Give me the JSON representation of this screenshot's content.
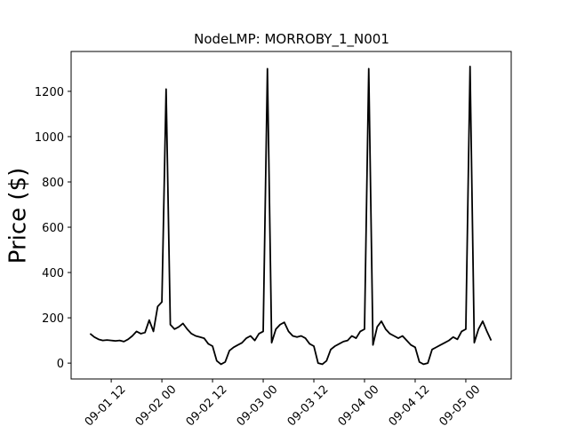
{
  "chart_data": {
    "type": "line",
    "title": "NodeLMP: MORROBY_1_N001",
    "y_label": "Price ($)",
    "x": [
      "09-01 07:00",
      "09-01 08:00",
      "09-01 09:00",
      "09-01 10:00",
      "09-01 11:00",
      "09-01 12:00",
      "09-01 13:00",
      "09-01 14:00",
      "09-01 15:00",
      "09-01 16:00",
      "09-01 17:00",
      "09-01 18:00",
      "09-01 19:00",
      "09-01 20:00",
      "09-01 21:00",
      "09-01 22:00",
      "09-01 23:00",
      "09-02 00:00",
      "09-02 01:00",
      "09-02 02:00",
      "09-02 03:00",
      "09-02 04:00",
      "09-02 05:00",
      "09-02 06:00",
      "09-02 07:00",
      "09-02 08:00",
      "09-02 09:00",
      "09-02 10:00",
      "09-02 11:00",
      "09-02 12:00",
      "09-02 13:00",
      "09-02 14:00",
      "09-02 15:00",
      "09-02 16:00",
      "09-02 17:00",
      "09-02 18:00",
      "09-02 19:00",
      "09-02 20:00",
      "09-02 21:00",
      "09-02 22:00",
      "09-02 23:00",
      "09-03 00:00",
      "09-03 01:00",
      "09-03 02:00",
      "09-03 03:00",
      "09-03 04:00",
      "09-03 05:00",
      "09-03 06:00",
      "09-03 07:00",
      "09-03 08:00",
      "09-03 09:00",
      "09-03 10:00",
      "09-03 11:00",
      "09-03 12:00",
      "09-03 13:00",
      "09-03 14:00",
      "09-03 15:00",
      "09-03 16:00",
      "09-03 17:00",
      "09-03 18:00",
      "09-03 19:00",
      "09-03 20:00",
      "09-03 21:00",
      "09-03 22:00",
      "09-03 23:00",
      "09-04 00:00",
      "09-04 01:00",
      "09-04 02:00",
      "09-04 03:00",
      "09-04 04:00",
      "09-04 05:00",
      "09-04 06:00",
      "09-04 07:00",
      "09-04 08:00",
      "09-04 09:00",
      "09-04 10:00",
      "09-04 11:00",
      "09-04 12:00",
      "09-04 13:00",
      "09-04 14:00",
      "09-04 15:00",
      "09-04 16:00",
      "09-04 17:00",
      "09-04 18:00",
      "09-04 19:00",
      "09-04 20:00",
      "09-04 21:00",
      "09-04 22:00",
      "09-04 23:00",
      "09-05 00:00",
      "09-05 01:00",
      "09-05 02:00",
      "09-05 03:00",
      "09-05 04:00",
      "09-05 05:00",
      "09-05 06:00"
    ],
    "series": [
      {
        "color": "#000000",
        "values": [
          130,
          115,
          105,
          100,
          102,
          100,
          98,
          100,
          95,
          105,
          120,
          140,
          130,
          135,
          190,
          140,
          250,
          270,
          1210,
          170,
          150,
          160,
          175,
          150,
          130,
          120,
          115,
          110,
          85,
          75,
          10,
          -5,
          5,
          55,
          70,
          80,
          90,
          110,
          120,
          100,
          130,
          140,
          1300,
          90,
          150,
          170,
          180,
          140,
          120,
          115,
          120,
          110,
          85,
          75,
          0,
          -5,
          10,
          60,
          75,
          85,
          95,
          100,
          120,
          110,
          140,
          150,
          1300,
          80,
          160,
          185,
          150,
          130,
          120,
          110,
          120,
          100,
          80,
          70,
          5,
          -5,
          0,
          60,
          70,
          80,
          90,
          100,
          115,
          105,
          140,
          150,
          1310,
          90,
          150,
          185,
          140,
          100
        ]
      }
    ],
    "xlim": [
      "09-01 02:30",
      "09-05 10:45"
    ],
    "xticks": [
      {
        "value": "09-01 12:00",
        "label": "09-01 12"
      },
      {
        "value": "09-02 00:00",
        "label": "09-02 00"
      },
      {
        "value": "09-02 12:00",
        "label": "09-02 12"
      },
      {
        "value": "09-03 00:00",
        "label": "09-03 00"
      },
      {
        "value": "09-03 12:00",
        "label": "09-03 12"
      },
      {
        "value": "09-04 00:00",
        "label": "09-04 00"
      },
      {
        "value": "09-04 12:00",
        "label": "09-04 12"
      },
      {
        "value": "09-05 00:00",
        "label": "09-05 00"
      }
    ],
    "ylim": [
      -70,
      1376
    ],
    "yticks": [
      0,
      200,
      400,
      600,
      800,
      1000,
      1200
    ]
  }
}
